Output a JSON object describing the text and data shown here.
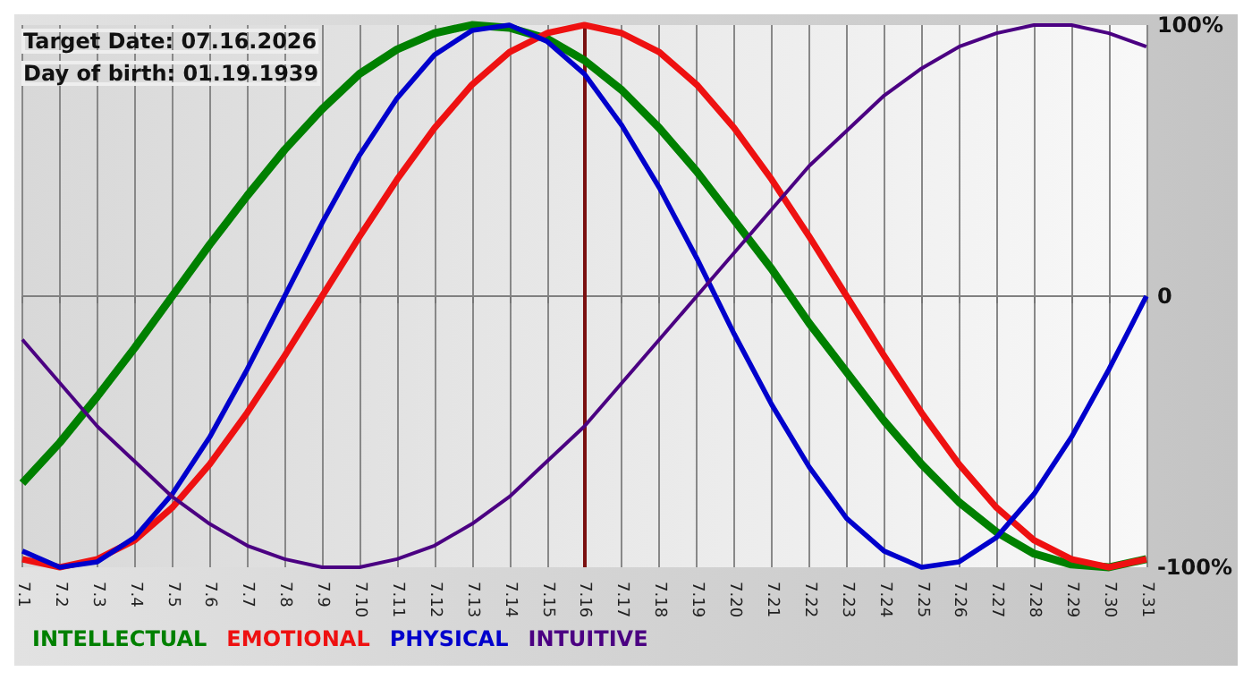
{
  "chart_data": {
    "type": "line",
    "categories": [
      "7.1",
      "7.2",
      "7.3",
      "7.4",
      "7.5",
      "7.6",
      "7.7",
      "7.8",
      "7.9",
      "7.10",
      "7.11",
      "7.12",
      "7.13",
      "7.14",
      "7.15",
      "7.16",
      "7.17",
      "7.18",
      "7.19",
      "7.20",
      "7.21",
      "7.22",
      "7.23",
      "7.24",
      "7.25",
      "7.26",
      "7.27",
      "7.28",
      "7.29",
      "7.30",
      "7.31"
    ],
    "series": [
      {
        "name": "INTELLECTUAL",
        "color": "#008000",
        "values": [
          -69,
          -54,
          -37,
          -19,
          0,
          19,
          37,
          54,
          69,
          82,
          91,
          97,
          100,
          99,
          95,
          87,
          76,
          62,
          46,
          28,
          10,
          -10,
          -28,
          -46,
          -62,
          -76,
          -87,
          -95,
          -99,
          -100,
          -97
        ]
      },
      {
        "name": "EMOTIONAL",
        "color": "#ee1111",
        "values": [
          -97,
          -100,
          -97,
          -90,
          -78,
          -62,
          -43,
          -22,
          0,
          22,
          43,
          62,
          78,
          90,
          97,
          100,
          97,
          90,
          78,
          62,
          43,
          22,
          0,
          -22,
          -43,
          -62,
          -78,
          -90,
          -97,
          -100,
          -97
        ]
      },
      {
        "name": "PHYSICAL",
        "color": "#0000cc",
        "values": [
          -94,
          -100,
          -98,
          -89,
          -73,
          -52,
          -27,
          0,
          27,
          52,
          73,
          89,
          98,
          100,
          94,
          82,
          63,
          40,
          14,
          -14,
          -40,
          -63,
          -82,
          -94,
          -100,
          -98,
          -89,
          -73,
          -52,
          -27,
          0
        ]
      },
      {
        "name": "INTUITIVE",
        "color": "#4b0082",
        "values": [
          -16,
          -32,
          -48,
          -61,
          -74,
          -84,
          -92,
          -97,
          -100,
          -100,
          -97,
          -92,
          -84,
          -74,
          -61,
          -48,
          -32,
          -16,
          0,
          16,
          32,
          48,
          61,
          74,
          84,
          92,
          97,
          100,
          100,
          97,
          92
        ]
      }
    ],
    "ylim": [
      -100,
      100
    ],
    "yticks": [
      {
        "value": 100,
        "label": "100%"
      },
      0,
      {
        "value": -100,
        "label": "-100%"
      }
    ],
    "grid": "x",
    "legend": "bottom left",
    "marker": "none",
    "line_style": "solid",
    "ref_lines": [
      {
        "axis": "y",
        "value": 0,
        "color": "#808080"
      },
      {
        "axis": "x",
        "value": "7.16",
        "color": "#7a1010"
      }
    ],
    "annotations": [
      "Target Date: 07.16.2026",
      "Day of birth: 01.19.1939"
    ]
  }
}
